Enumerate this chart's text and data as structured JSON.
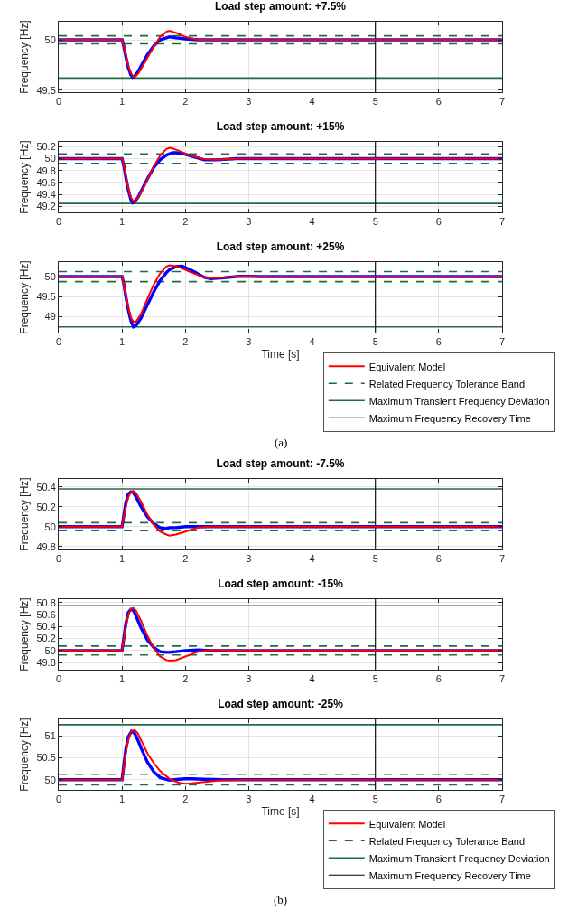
{
  "chart_data": [
    {
      "type": "line",
      "title": "Load step amount: +7.5%",
      "ylabel": "Frequency [Hz]",
      "xlim": [
        0,
        7
      ],
      "xticks": [
        0,
        1,
        2,
        3,
        4,
        5,
        6,
        7
      ],
      "ylim": [
        49.48,
        50.18
      ],
      "yticks": [
        49.5,
        50
      ],
      "grid": true,
      "legend": false,
      "series": [
        {
          "color": "#0000ff",
          "x": [
            0,
            1,
            1.03,
            1.06,
            1.1,
            1.14,
            1.17,
            1.2,
            1.25,
            1.3,
            1.4,
            1.5,
            1.6,
            1.7,
            1.75,
            1.85,
            2.0,
            2.2,
            2.4,
            2.7,
            7
          ],
          "values": [
            50,
            50,
            49.93,
            49.83,
            49.72,
            49.65,
            49.63,
            49.64,
            49.68,
            49.74,
            49.85,
            49.94,
            50.0,
            50.02,
            50.03,
            50.02,
            50.01,
            50.0,
            50.0,
            50.0,
            50
          ]
        },
        {
          "color": "#ff0000",
          "x": [
            0,
            1,
            1.03,
            1.06,
            1.1,
            1.14,
            1.17,
            1.2,
            1.25,
            1.3,
            1.4,
            1.5,
            1.6,
            1.7,
            1.75,
            1.85,
            2.0,
            2.2,
            2.4,
            2.7,
            7
          ],
          "values": [
            50,
            50,
            49.94,
            49.85,
            49.74,
            49.67,
            49.64,
            49.63,
            49.66,
            49.71,
            49.82,
            49.93,
            50.03,
            50.08,
            50.09,
            50.07,
            50.03,
            50.0,
            50.0,
            50.0,
            50
          ]
        }
      ],
      "ref_lines": [
        {
          "axis": "y",
          "value": 50.04,
          "color": "#216b41",
          "line_style": "dashed"
        },
        {
          "axis": "y",
          "value": 49.96,
          "color": "#216b41",
          "line_style": "dashed"
        },
        {
          "axis": "y",
          "value": 49.62,
          "color": "#216b41",
          "line_style": "solid"
        },
        {
          "axis": "x",
          "value": 5,
          "color": "#000000",
          "line_style": "solid"
        }
      ]
    },
    {
      "type": "line",
      "title": "Load step amount: +15%",
      "ylabel": "Frequency [Hz]",
      "xlim": [
        0,
        7
      ],
      "xticks": [
        0,
        1,
        2,
        3,
        4,
        5,
        6,
        7
      ],
      "ylim": [
        49.1,
        50.28
      ],
      "yticks": [
        49.2,
        49.4,
        49.6,
        49.8,
        50,
        50.2
      ],
      "grid": true,
      "legend": false,
      "series": [
        {
          "color": "#0000ff",
          "x": [
            0,
            1,
            1.03,
            1.06,
            1.1,
            1.14,
            1.17,
            1.2,
            1.25,
            1.3,
            1.4,
            1.5,
            1.6,
            1.7,
            1.8,
            1.85,
            1.95,
            2.1,
            2.3,
            2.5,
            2.8,
            7
          ],
          "values": [
            50,
            50,
            49.87,
            49.68,
            49.47,
            49.31,
            49.26,
            49.28,
            49.35,
            49.45,
            49.66,
            49.85,
            49.98,
            50.06,
            50.1,
            50.1,
            50.09,
            50.04,
            49.98,
            49.98,
            50,
            50
          ]
        },
        {
          "color": "#ff0000",
          "x": [
            0,
            1,
            1.03,
            1.06,
            1.1,
            1.14,
            1.17,
            1.2,
            1.25,
            1.3,
            1.4,
            1.5,
            1.6,
            1.7,
            1.75,
            1.8,
            1.9,
            2.05,
            2.3,
            2.5,
            2.8,
            7
          ],
          "values": [
            50,
            50,
            49.88,
            49.7,
            49.5,
            49.35,
            49.3,
            49.3,
            49.34,
            49.43,
            49.65,
            49.87,
            50.05,
            50.16,
            50.18,
            50.17,
            50.13,
            50.06,
            49.99,
            49.98,
            50.0,
            50
          ]
        }
      ],
      "ref_lines": [
        {
          "axis": "y",
          "value": 50.08,
          "color": "#216b41",
          "line_style": "dashed"
        },
        {
          "axis": "y",
          "value": 49.92,
          "color": "#216b41",
          "line_style": "dashed"
        },
        {
          "axis": "y",
          "value": 49.25,
          "color": "#216b41",
          "line_style": "solid"
        },
        {
          "axis": "x",
          "value": 5,
          "color": "#000000",
          "line_style": "solid"
        }
      ]
    },
    {
      "type": "line",
      "title": "Load step amount: +25%",
      "ylabel": "Frequency [Hz]",
      "xlabel": "Time [s]",
      "xlim": [
        0,
        7
      ],
      "xticks": [
        0,
        1,
        2,
        3,
        4,
        5,
        6,
        7
      ],
      "ylim": [
        48.61,
        50.36
      ],
      "yticks": [
        49,
        49.5,
        50
      ],
      "grid": true,
      "legend": "bottom right",
      "annotations": [
        "(a)"
      ],
      "series": [
        {
          "color": "#0000ff",
          "x": [
            0,
            1,
            1.03,
            1.06,
            1.1,
            1.14,
            1.18,
            1.22,
            1.3,
            1.4,
            1.5,
            1.6,
            1.7,
            1.75,
            1.85,
            1.95,
            2.1,
            2.3,
            2.4,
            2.6,
            2.85,
            3.2,
            7
          ],
          "values": [
            50,
            50,
            49.8,
            49.5,
            49.17,
            48.9,
            48.75,
            48.78,
            48.97,
            49.3,
            49.62,
            49.9,
            50.1,
            50.17,
            50.25,
            50.26,
            50.15,
            49.98,
            49.95,
            49.97,
            50.01,
            50.0,
            50
          ]
        },
        {
          "name": "Equivalent Model",
          "color": "#ff0000",
          "x": [
            0,
            1,
            1.03,
            1.06,
            1.1,
            1.14,
            1.18,
            1.22,
            1.3,
            1.4,
            1.5,
            1.6,
            1.7,
            1.75,
            1.85,
            1.95,
            2.1,
            2.3,
            2.4,
            2.6,
            2.85,
            3.2,
            7
          ],
          "values": [
            50,
            50,
            49.8,
            49.52,
            49.22,
            48.98,
            48.88,
            48.88,
            49.07,
            49.45,
            49.8,
            50.08,
            50.25,
            50.28,
            50.26,
            50.2,
            50.1,
            49.98,
            49.96,
            49.98,
            50.01,
            50.0,
            50
          ]
        }
      ],
      "ref_lines": [
        {
          "axis": "y",
          "value": 50.125,
          "color": "#216b41",
          "line_style": "dashed",
          "label": "Related Frequency Tolerance Band"
        },
        {
          "axis": "y",
          "value": 49.875,
          "color": "#216b41",
          "line_style": "dashed"
        },
        {
          "axis": "y",
          "value": 48.75,
          "color": "#216b41",
          "line_style": "solid",
          "label": "Maximum Transient Frequency Deviation"
        },
        {
          "axis": "x",
          "value": 5,
          "color": "#000000",
          "line_style": "solid",
          "label": "Maximum Frequency Recovery Time"
        }
      ]
    },
    {
      "type": "line",
      "title": "Load step amount: -7.5%",
      "ylabel": "Frequency [Hz]",
      "xlim": [
        0,
        7
      ],
      "xticks": [
        0,
        1,
        2,
        3,
        4,
        5,
        6,
        7
      ],
      "ylim": [
        49.77,
        50.48
      ],
      "yticks": [
        49.8,
        50,
        50.2,
        50.4
      ],
      "grid": true,
      "legend": false,
      "series": [
        {
          "color": "#0000ff",
          "x": [
            0,
            1,
            1.03,
            1.06,
            1.1,
            1.14,
            1.18,
            1.22,
            1.3,
            1.4,
            1.5,
            1.6,
            1.7,
            1.75,
            1.85,
            2.0,
            2.2,
            2.4,
            2.7,
            7
          ],
          "values": [
            50,
            50,
            50.12,
            50.24,
            50.33,
            50.35,
            50.34,
            50.3,
            50.2,
            50.1,
            50.03,
            49.99,
            49.98,
            49.99,
            49.99,
            50.0,
            50.0,
            50.0,
            50.0,
            50
          ]
        },
        {
          "color": "#ff0000",
          "x": [
            0,
            1,
            1.03,
            1.06,
            1.1,
            1.14,
            1.18,
            1.22,
            1.3,
            1.4,
            1.5,
            1.6,
            1.7,
            1.75,
            1.85,
            2.0,
            2.2,
            2.4,
            2.7,
            7
          ],
          "values": [
            50,
            50,
            50.1,
            50.2,
            50.3,
            50.35,
            50.36,
            50.34,
            50.25,
            50.12,
            50.02,
            49.95,
            49.92,
            49.91,
            49.92,
            49.95,
            49.99,
            50.0,
            50.0,
            50
          ]
        }
      ],
      "ref_lines": [
        {
          "axis": "y",
          "value": 50.04,
          "color": "#216b41",
          "line_style": "dashed"
        },
        {
          "axis": "y",
          "value": 49.96,
          "color": "#216b41",
          "line_style": "dashed"
        },
        {
          "axis": "y",
          "value": 50.38,
          "color": "#216b41",
          "line_style": "solid"
        },
        {
          "axis": "x",
          "value": 5,
          "color": "#000000",
          "line_style": "solid"
        }
      ]
    },
    {
      "type": "line",
      "title": "Load step amount: -15%",
      "ylabel": "Frequency [Hz]",
      "xlim": [
        0,
        7
      ],
      "xticks": [
        0,
        1,
        2,
        3,
        4,
        5,
        6,
        7
      ],
      "ylim": [
        49.68,
        50.86
      ],
      "yticks": [
        49.8,
        50,
        50.2,
        50.4,
        50.6,
        50.8
      ],
      "grid": true,
      "legend": false,
      "series": [
        {
          "color": "#0000ff",
          "x": [
            0,
            1,
            1.03,
            1.06,
            1.1,
            1.14,
            1.18,
            1.22,
            1.3,
            1.4,
            1.5,
            1.6,
            1.7,
            1.75,
            1.85,
            2.0,
            2.2,
            2.4,
            2.7,
            7
          ],
          "values": [
            50,
            50,
            50.22,
            50.45,
            50.64,
            50.69,
            50.67,
            50.58,
            50.38,
            50.18,
            50.05,
            49.98,
            49.97,
            49.97,
            49.98,
            50.0,
            50.01,
            50.0,
            50.0,
            50
          ]
        },
        {
          "color": "#ff0000",
          "x": [
            0,
            1,
            1.03,
            1.06,
            1.1,
            1.14,
            1.18,
            1.22,
            1.3,
            1.4,
            1.5,
            1.6,
            1.7,
            1.75,
            1.85,
            2.0,
            2.2,
            2.4,
            2.7,
            7
          ],
          "values": [
            50,
            50,
            50.2,
            50.4,
            50.6,
            50.7,
            50.71,
            50.67,
            50.5,
            50.25,
            50.04,
            49.9,
            49.84,
            49.83,
            49.84,
            49.9,
            49.98,
            50.01,
            50.0,
            50
          ]
        }
      ],
      "ref_lines": [
        {
          "axis": "y",
          "value": 50.075,
          "color": "#216b41",
          "line_style": "dashed"
        },
        {
          "axis": "y",
          "value": 49.925,
          "color": "#216b41",
          "line_style": "dashed"
        },
        {
          "axis": "y",
          "value": 50.75,
          "color": "#216b41",
          "line_style": "solid"
        },
        {
          "axis": "x",
          "value": 5,
          "color": "#000000",
          "line_style": "solid"
        }
      ]
    },
    {
      "type": "line",
      "title": "Load step amount: -25%",
      "ylabel": "Frequency [Hz]",
      "xlabel": "Time [s]",
      "xlim": [
        0,
        7
      ],
      "xticks": [
        0,
        1,
        2,
        3,
        4,
        5,
        6,
        7
      ],
      "ylim": [
        49.77,
        51.37
      ],
      "yticks": [
        50,
        50.5,
        51
      ],
      "grid": true,
      "legend": "bottom right",
      "annotations": [
        "(b)"
      ],
      "series": [
        {
          "color": "#0000ff",
          "x": [
            0,
            1,
            1.03,
            1.06,
            1.1,
            1.15,
            1.2,
            1.25,
            1.3,
            1.4,
            1.5,
            1.6,
            1.75,
            1.9,
            2.0,
            2.1,
            2.3,
            2.6,
            3,
            7
          ],
          "values": [
            50,
            50,
            50.35,
            50.7,
            50.98,
            51.1,
            51.05,
            50.9,
            50.72,
            50.4,
            50.18,
            50.05,
            49.99,
            50.01,
            50.02,
            50.02,
            50.01,
            50.0,
            50.0,
            50
          ]
        },
        {
          "name": "Equivalent Model",
          "color": "#ff0000",
          "x": [
            0,
            1,
            1.03,
            1.06,
            1.1,
            1.15,
            1.2,
            1.25,
            1.3,
            1.4,
            1.5,
            1.6,
            1.75,
            1.9,
            2.0,
            2.1,
            2.3,
            2.6,
            3,
            7
          ],
          "values": [
            50,
            50,
            50.3,
            50.62,
            50.92,
            51.1,
            51.13,
            51.05,
            50.9,
            50.6,
            50.38,
            50.2,
            50.02,
            49.93,
            49.91,
            49.92,
            49.95,
            49.99,
            50.0,
            50
          ]
        }
      ],
      "ref_lines": [
        {
          "axis": "y",
          "value": 50.125,
          "color": "#216b41",
          "line_style": "dashed",
          "label": "Related Frequency Tolerance Band"
        },
        {
          "axis": "y",
          "value": 49.885,
          "color": "#216b41",
          "line_style": "dashed"
        },
        {
          "axis": "y",
          "value": 51.25,
          "color": "#216b41",
          "line_style": "solid",
          "label": "Maximum Transient Frequency Deviation"
        },
        {
          "axis": "x",
          "value": 5,
          "color": "#000000",
          "line_style": "solid",
          "label": "Maximum Frequency Recovery Time"
        }
      ]
    }
  ]
}
